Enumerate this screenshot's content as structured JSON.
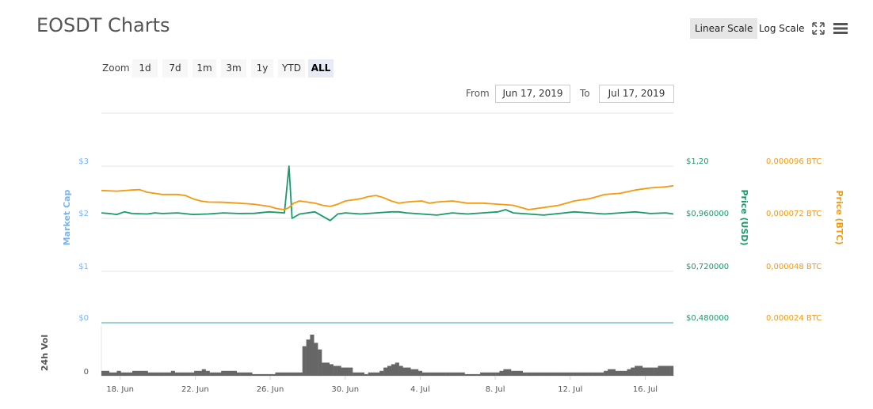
{
  "title": "EOSDT Charts",
  "scale": {
    "linear": "Linear Scale",
    "log": "Log Scale",
    "active": "linear"
  },
  "toolbar": {
    "fullscreen_icon": "fullscreen-icon",
    "menu_icon": "hamburger-menu-icon"
  },
  "zoom": {
    "label": "Zoom",
    "buttons": [
      "1d",
      "7d",
      "1m",
      "3m",
      "1y",
      "YTD",
      "ALL"
    ],
    "active": "ALL"
  },
  "range": {
    "from_label": "From",
    "from_value": "Jun 17, 2019",
    "to_label": "To",
    "to_value": "Jul 17, 2019"
  },
  "colors": {
    "market_cap": "#7cb5ec",
    "price_usd": "#1a9a6b",
    "price_btc": "#f49a0f",
    "volume": "#666666",
    "grid": "#e6e6e6",
    "zero_line": "#3aa0b0"
  },
  "chart_data": {
    "type": "line",
    "x_ticks": [
      "18. Jun",
      "22. Jun",
      "26. Jun",
      "30. Jun",
      "4. Jul",
      "8. Jul",
      "12. Jul",
      "16. Jul"
    ],
    "x_range": [
      "2019-06-17",
      "2019-07-17"
    ],
    "axes": {
      "market_cap": {
        "label": "Market Cap",
        "ticks": [
          "$0",
          "$1",
          "$2",
          "$3"
        ]
      },
      "price_usd": {
        "label": "Price (USD)",
        "ticks": [
          "$0,480000",
          "$0,720000",
          "$0,960000",
          "$1,20"
        ],
        "range": [
          0.48,
          1.2
        ]
      },
      "price_btc": {
        "label": "Price (BTC)",
        "ticks": [
          "0,000024 BTC",
          "0,000048 BTC",
          "0,000072 BTC",
          "0,000096 BTC"
        ],
        "range": [
          2.4e-05,
          9.6e-05
        ]
      },
      "volume": {
        "label": "24h Vol",
        "ticks": [
          "0"
        ]
      }
    },
    "series": [
      {
        "key": "price_usd",
        "values": [
          [
            0,
            0.985
          ],
          [
            0.5,
            0.982
          ],
          [
            1,
            0.978
          ],
          [
            1.5,
            0.99
          ],
          [
            2,
            0.982
          ],
          [
            3,
            0.98
          ],
          [
            3.5,
            0.985
          ],
          [
            4,
            0.982
          ],
          [
            5,
            0.985
          ],
          [
            6,
            0.978
          ],
          [
            7,
            0.98
          ],
          [
            8,
            0.985
          ],
          [
            9,
            0.982
          ],
          [
            10,
            0.983
          ],
          [
            11,
            0.99
          ],
          [
            12,
            0.985
          ],
          [
            12.3,
            1.2
          ],
          [
            12.5,
            0.96
          ],
          [
            13,
            0.98
          ],
          [
            14,
            0.99
          ],
          [
            14.5,
            0.97
          ],
          [
            15,
            0.95
          ],
          [
            15.5,
            0.98
          ],
          [
            16,
            0.985
          ],
          [
            17,
            0.98
          ],
          [
            18,
            0.985
          ],
          [
            19,
            0.99
          ],
          [
            19.5,
            0.99
          ],
          [
            20,
            0.985
          ],
          [
            21,
            0.98
          ],
          [
            22,
            0.975
          ],
          [
            23,
            0.985
          ],
          [
            24,
            0.98
          ],
          [
            25,
            0.985
          ],
          [
            26,
            0.99
          ],
          [
            26.5,
            1.0
          ],
          [
            27,
            0.985
          ],
          [
            28,
            0.98
          ],
          [
            29,
            0.975
          ],
          [
            30,
            0.982
          ],
          [
            31,
            0.99
          ],
          [
            32,
            0.985
          ],
          [
            33,
            0.98
          ],
          [
            34,
            0.985
          ],
          [
            35,
            0.99
          ],
          [
            36,
            0.982
          ],
          [
            37,
            0.985
          ],
          [
            37.5,
            0.98
          ]
        ]
      },
      {
        "key": "price_btc",
        "values": [
          [
            0,
            8.48e-05
          ],
          [
            1,
            8.45e-05
          ],
          [
            2,
            8.5e-05
          ],
          [
            2.5,
            8.52e-05
          ],
          [
            3,
            8.4e-05
          ],
          [
            3.5,
            8.35e-05
          ],
          [
            4,
            8.3e-05
          ],
          [
            5,
            8.3e-05
          ],
          [
            5.5,
            8.25e-05
          ],
          [
            6,
            8.1e-05
          ],
          [
            6.5,
            8e-05
          ],
          [
            7,
            7.95e-05
          ],
          [
            8,
            7.94e-05
          ],
          [
            9,
            7.9e-05
          ],
          [
            10,
            7.85e-05
          ],
          [
            10.5,
            7.8e-05
          ],
          [
            11,
            7.75e-05
          ],
          [
            11.5,
            7.65e-05
          ],
          [
            12,
            7.6e-05
          ],
          [
            12.3,
            7.7e-05
          ],
          [
            12.6,
            7.9e-05
          ],
          [
            13,
            8e-05
          ],
          [
            13.5,
            7.95e-05
          ],
          [
            14,
            7.9e-05
          ],
          [
            14.5,
            7.8e-05
          ],
          [
            15,
            7.75e-05
          ],
          [
            15.5,
            7.85e-05
          ],
          [
            16,
            8e-05
          ],
          [
            17,
            8.1e-05
          ],
          [
            17.5,
            8.2e-05
          ],
          [
            18,
            8.25e-05
          ],
          [
            18.5,
            8.15e-05
          ],
          [
            19,
            8e-05
          ],
          [
            19.5,
            7.9e-05
          ],
          [
            20,
            7.95e-05
          ],
          [
            21,
            8e-05
          ],
          [
            21.5,
            7.9e-05
          ],
          [
            22,
            7.95e-05
          ],
          [
            23,
            8e-05
          ],
          [
            24,
            7.9e-05
          ],
          [
            25,
            7.9e-05
          ],
          [
            26,
            7.85e-05
          ],
          [
            27,
            7.8e-05
          ],
          [
            27.5,
            7.7e-05
          ],
          [
            28,
            7.6e-05
          ],
          [
            29,
            7.7e-05
          ],
          [
            30,
            7.8e-05
          ],
          [
            31,
            8e-05
          ],
          [
            32,
            8.1e-05
          ],
          [
            33,
            8.3e-05
          ],
          [
            34,
            8.35e-05
          ],
          [
            35,
            8.5e-05
          ],
          [
            36,
            8.6e-05
          ],
          [
            37,
            8.65e-05
          ],
          [
            37.5,
            8.7e-05
          ]
        ]
      }
    ],
    "volume_values": [
      3,
      3,
      2,
      2,
      3,
      2,
      2,
      2,
      3,
      3,
      3,
      3,
      2,
      2,
      2,
      2,
      2,
      2,
      3,
      2,
      2,
      2,
      2,
      2,
      3,
      3,
      4,
      3,
      2,
      2,
      2,
      3,
      3,
      3,
      3,
      2,
      2,
      2,
      2,
      1,
      1,
      1,
      1,
      1,
      1,
      2,
      2,
      2,
      2,
      2,
      2,
      2,
      18,
      22,
      25,
      20,
      16,
      8,
      8,
      7,
      6,
      6,
      5,
      5,
      5,
      2,
      2,
      2,
      1,
      2,
      2,
      2,
      3,
      5,
      6,
      7,
      8,
      6,
      5,
      5,
      4,
      4,
      3,
      2,
      2,
      2,
      2,
      2,
      2,
      2,
      2,
      2,
      2,
      2,
      1,
      1,
      1,
      1,
      2,
      2,
      2,
      2,
      2,
      3,
      4,
      4,
      3,
      3,
      3,
      2,
      2,
      2,
      2,
      2,
      2,
      2,
      2,
      2,
      2,
      2,
      2,
      2,
      2,
      2,
      2,
      2,
      2,
      2,
      2,
      2,
      3,
      4,
      4,
      3,
      3,
      3,
      4,
      5,
      6,
      6,
      5,
      5,
      5,
      5,
      6,
      6,
      6,
      6
    ]
  }
}
